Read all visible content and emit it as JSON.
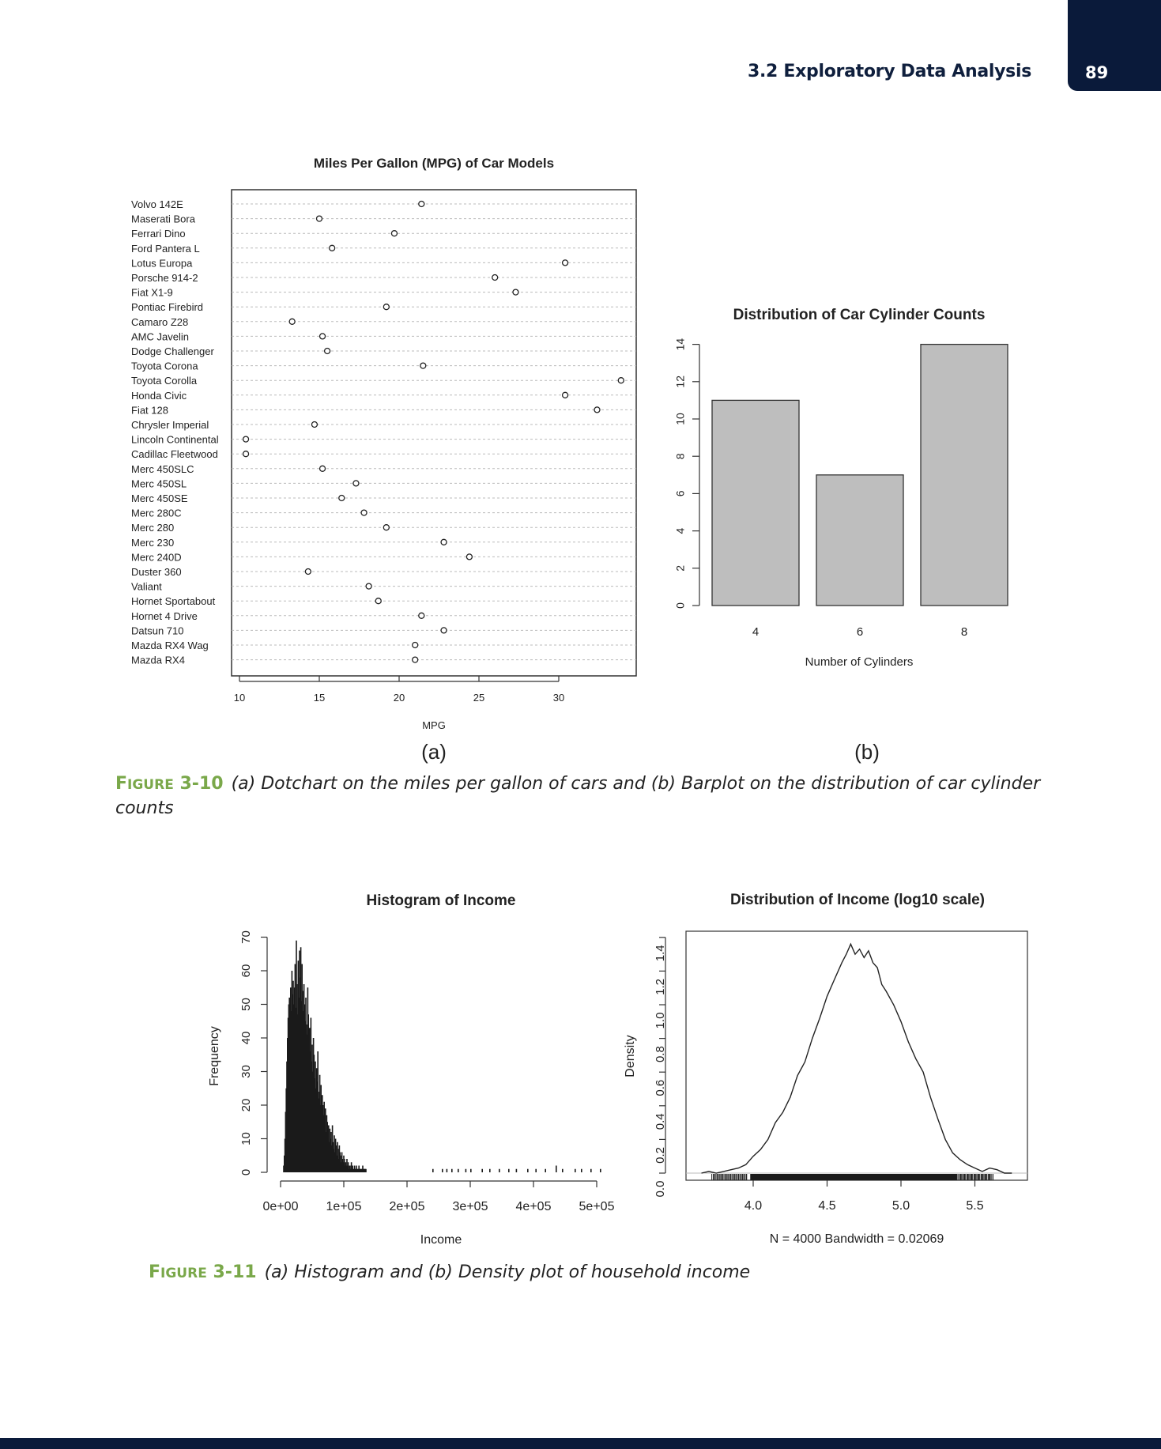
{
  "header": {
    "section": "3.2 Exploratory Data Analysis",
    "page_number": "89"
  },
  "figure_3_10": {
    "label_prefix": "F",
    "label_rest": "IGURE",
    "label_num": "3-10",
    "caption_line1": "(a) Dotchart on the miles per gallon of cars and (b) Barplot on the distribution of car cylinder",
    "caption_line2": "counts",
    "sub_a": "(a)",
    "sub_b": "(b)"
  },
  "figure_3_11": {
    "label_prefix": "F",
    "label_rest": "IGURE",
    "label_num": "3-11",
    "caption": "(a) Histogram and (b) Density plot of household income"
  },
  "chart_data": [
    {
      "type": "scatter",
      "subtype": "dotchart",
      "title": "Miles Per Gallon (MPG) of Car Models",
      "xlabel": "MPG",
      "xlim": [
        10,
        35
      ],
      "xticks": [
        10,
        15,
        20,
        25,
        30
      ],
      "categories": [
        "Volvo 142E",
        "Maserati Bora",
        "Ferrari Dino",
        "Ford Pantera L",
        "Lotus Europa",
        "Porsche 914-2",
        "Fiat X1-9",
        "Pontiac Firebird",
        "Camaro Z28",
        "AMC Javelin",
        "Dodge Challenger",
        "Toyota Corona",
        "Toyota Corolla",
        "Honda Civic",
        "Fiat 128",
        "Chrysler Imperial",
        "Lincoln Continental",
        "Cadillac Fleetwood",
        "Merc 450SLC",
        "Merc 450SL",
        "Merc 450SE",
        "Merc 280C",
        "Merc 280",
        "Merc 230",
        "Merc 240D",
        "Duster 360",
        "Valiant",
        "Hornet Sportabout",
        "Hornet 4 Drive",
        "Datsun 710",
        "Mazda RX4 Wag",
        "Mazda RX4"
      ],
      "values": [
        21.4,
        15.0,
        19.7,
        15.8,
        30.4,
        26.0,
        27.3,
        19.2,
        13.3,
        15.2,
        15.5,
        21.5,
        33.9,
        30.4,
        32.4,
        14.7,
        10.4,
        10.4,
        15.2,
        17.3,
        16.4,
        17.8,
        19.2,
        22.8,
        24.4,
        14.3,
        18.1,
        18.7,
        21.4,
        22.8,
        21.0,
        21.0
      ]
    },
    {
      "type": "bar",
      "title": "Distribution of Car Cylinder Counts",
      "xlabel": "Number of Cylinders",
      "categories": [
        "4",
        "6",
        "8"
      ],
      "values": [
        11,
        7,
        14
      ],
      "ylim": [
        0,
        14
      ],
      "yticks": [
        0,
        2,
        4,
        6,
        8,
        10,
        12,
        14
      ],
      "color": "#bebebe"
    },
    {
      "type": "bar",
      "subtype": "histogram",
      "title": "Histogram of Income",
      "xlabel": "Income",
      "ylabel": "Frequency",
      "xlim": [
        0,
        520000
      ],
      "xtick_labels": [
        "0e+00",
        "1e+05",
        "2e+05",
        "3e+05",
        "4e+05",
        "5e+05"
      ],
      "xticks": [
        0,
        100000,
        200000,
        300000,
        400000,
        500000
      ],
      "ylim": [
        0,
        70
      ],
      "yticks": [
        0,
        10,
        20,
        30,
        40,
        50,
        60,
        70
      ],
      "bin_width": 1000,
      "x_start": 4000,
      "values": [
        2,
        5,
        10,
        18,
        25,
        33,
        40,
        46,
        50,
        52,
        51,
        55,
        48,
        60,
        53,
        57,
        50,
        55,
        62,
        49,
        69,
        56,
        47,
        63,
        52,
        66,
        58,
        67,
        51,
        62,
        54,
        48,
        56,
        50,
        45,
        52,
        44,
        41,
        55,
        47,
        39,
        43,
        36,
        46,
        33,
        38,
        30,
        40,
        35,
        28,
        33,
        25,
        31,
        27,
        36,
        24,
        22,
        29,
        20,
        26,
        18,
        23,
        20,
        17,
        21,
        14,
        19,
        12,
        17,
        15,
        11,
        14,
        9,
        13,
        10,
        12,
        8,
        14,
        9,
        7,
        11,
        6,
        10,
        8,
        5,
        9,
        7,
        4,
        8,
        6,
        5,
        3,
        6,
        4,
        3,
        5,
        4,
        2,
        3,
        2,
        4,
        2,
        3,
        1,
        2,
        2,
        1,
        3,
        1,
        2,
        1,
        1,
        2,
        1,
        1,
        2,
        1,
        1,
        1,
        2,
        1,
        1,
        1,
        1,
        1,
        2,
        1,
        1,
        1,
        1,
        1
      ],
      "tail_values": [
        [
          240000,
          1
        ],
        [
          255000,
          1
        ],
        [
          262000,
          1
        ],
        [
          270000,
          1
        ],
        [
          280000,
          1
        ],
        [
          292000,
          1
        ],
        [
          300000,
          1
        ],
        [
          318000,
          1
        ],
        [
          330000,
          1
        ],
        [
          345000,
          1
        ],
        [
          360000,
          1
        ],
        [
          372000,
          1
        ],
        [
          390000,
          1
        ],
        [
          403000,
          1
        ],
        [
          418000,
          1
        ],
        [
          435000,
          2
        ],
        [
          445000,
          1
        ],
        [
          465000,
          1
        ],
        [
          475000,
          1
        ],
        [
          490000,
          1
        ],
        [
          505000,
          1
        ]
      ]
    },
    {
      "type": "line",
      "subtype": "density",
      "title": "Distribution of Income (log10 scale)",
      "ylabel": "Density",
      "xlabel": "N = 4000   Bandwidth = 0.02069",
      "xlim": [
        3.6,
        5.85
      ],
      "xticks": [
        4.0,
        4.5,
        5.0,
        5.5
      ],
      "ylim": [
        0,
        1.4
      ],
      "yticks": [
        0.0,
        0.2,
        0.4,
        0.6,
        0.8,
        1.0,
        1.2,
        1.4
      ],
      "x": [
        3.65,
        3.7,
        3.75,
        3.8,
        3.85,
        3.9,
        3.95,
        4.0,
        4.05,
        4.1,
        4.15,
        4.2,
        4.25,
        4.3,
        4.35,
        4.4,
        4.45,
        4.5,
        4.55,
        4.6,
        4.63,
        4.66,
        4.69,
        4.72,
        4.75,
        4.78,
        4.81,
        4.84,
        4.87,
        4.9,
        4.95,
        5.0,
        5.05,
        5.1,
        5.15,
        5.2,
        5.25,
        5.3,
        5.35,
        5.4,
        5.45,
        5.5,
        5.55,
        5.6,
        5.65,
        5.7,
        5.75
      ],
      "y": [
        0.0,
        0.01,
        0.0,
        0.01,
        0.02,
        0.03,
        0.05,
        0.1,
        0.14,
        0.2,
        0.3,
        0.36,
        0.45,
        0.58,
        0.66,
        0.8,
        0.92,
        1.05,
        1.15,
        1.25,
        1.3,
        1.36,
        1.3,
        1.33,
        1.28,
        1.32,
        1.25,
        1.22,
        1.12,
        1.08,
        1.0,
        0.9,
        0.78,
        0.68,
        0.6,
        0.45,
        0.32,
        0.2,
        0.12,
        0.08,
        0.05,
        0.03,
        0.01,
        0.03,
        0.02,
        0.0,
        0.0
      ]
    }
  ]
}
